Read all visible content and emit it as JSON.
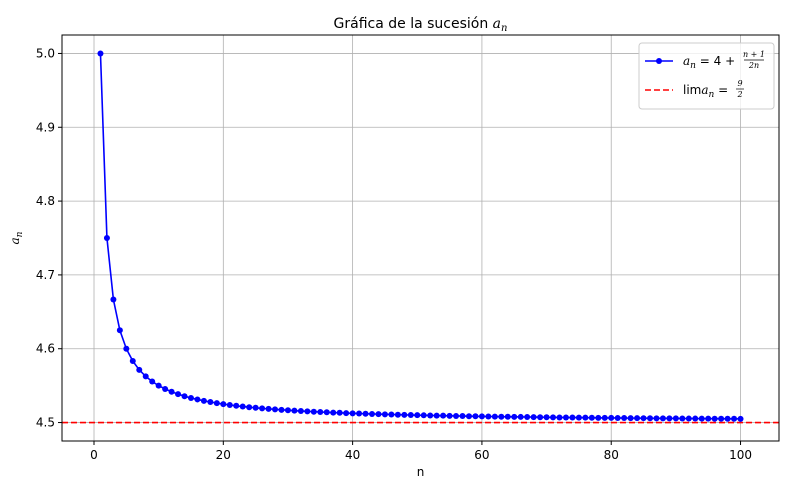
{
  "chart_data": {
    "type": "line",
    "title_prefix": "Gráfica de la sucesión ",
    "title_math": "a",
    "title_sub": "n",
    "xlabel": "n",
    "ylabel": "a",
    "ylabel_sub": "n",
    "xlim": [
      -4.95,
      105.95
    ],
    "ylim": [
      4.475,
      5.025
    ],
    "xticks": [
      0,
      20,
      40,
      60,
      80,
      100
    ],
    "yticks": [
      4.5,
      4.6,
      4.7,
      4.8,
      4.9,
      5.0
    ],
    "xtick_labels": [
      "0",
      "20",
      "40",
      "60",
      "80",
      "100"
    ],
    "ytick_labels": [
      "4.5",
      "4.6",
      "4.7",
      "4.8",
      "4.9",
      "5.0"
    ],
    "grid": true,
    "legend_position": "top-right",
    "series": [
      {
        "name": "a_n = 4 + (n+1)/(2n)",
        "legend_lhs": "a",
        "legend_sub": "n",
        "legend_eq": " = 4 + ",
        "legend_num": "n + 1",
        "legend_den": "2n",
        "color": "#0000ff",
        "marker": "circle",
        "x": [
          1,
          2,
          3,
          4,
          5,
          6,
          7,
          8,
          9,
          10,
          11,
          12,
          13,
          14,
          15,
          16,
          17,
          18,
          19,
          20,
          21,
          22,
          23,
          24,
          25,
          26,
          27,
          28,
          29,
          30,
          31,
          32,
          33,
          34,
          35,
          36,
          37,
          38,
          39,
          40,
          41,
          42,
          43,
          44,
          45,
          46,
          47,
          48,
          49,
          50,
          51,
          52,
          53,
          54,
          55,
          56,
          57,
          58,
          59,
          60,
          61,
          62,
          63,
          64,
          65,
          66,
          67,
          68,
          69,
          70,
          71,
          72,
          73,
          74,
          75,
          76,
          77,
          78,
          79,
          80,
          81,
          82,
          83,
          84,
          85,
          86,
          87,
          88,
          89,
          90,
          91,
          92,
          93,
          94,
          95,
          96,
          97,
          98,
          99,
          100
        ],
        "y": [
          5.0,
          4.75,
          4.6667,
          4.625,
          4.6,
          4.5833,
          4.5714,
          4.5625,
          4.5556,
          4.55,
          4.5455,
          4.5417,
          4.5385,
          4.5357,
          4.5333,
          4.5313,
          4.5294,
          4.5278,
          4.5263,
          4.525,
          4.5238,
          4.5227,
          4.5217,
          4.5208,
          4.52,
          4.5192,
          4.5185,
          4.5179,
          4.5172,
          4.5167,
          4.5161,
          4.5156,
          4.5152,
          4.5147,
          4.5143,
          4.5139,
          4.5135,
          4.5132,
          4.5128,
          4.5125,
          4.5122,
          4.5119,
          4.5116,
          4.5114,
          4.5111,
          4.5109,
          4.5106,
          4.5104,
          4.5102,
          4.51,
          4.5098,
          4.5096,
          4.5094,
          4.5093,
          4.5091,
          4.5089,
          4.5088,
          4.5086,
          4.5085,
          4.5083,
          4.5082,
          4.5081,
          4.5079,
          4.5078,
          4.5077,
          4.5076,
          4.5075,
          4.5074,
          4.5072,
          4.5071,
          4.507,
          4.5069,
          4.5068,
          4.5068,
          4.5067,
          4.5066,
          4.5065,
          4.5064,
          4.5063,
          4.5063,
          4.5062,
          4.5061,
          4.506,
          4.506,
          4.5059,
          4.5058,
          4.5057,
          4.5057,
          4.5056,
          4.5056,
          4.5055,
          4.5054,
          4.5054,
          4.5053,
          4.5053,
          4.5052,
          4.5052,
          4.5051,
          4.5051,
          4.505
        ]
      },
      {
        "name": "lim a_n = 9/2",
        "legend_lhs": "lim",
        "legend_mid": "a",
        "legend_sub": "n",
        "legend_eq": " = ",
        "legend_num": "9",
        "legend_den": "2",
        "color": "#ff0000",
        "style": "dashed",
        "hline": 4.5
      }
    ]
  }
}
